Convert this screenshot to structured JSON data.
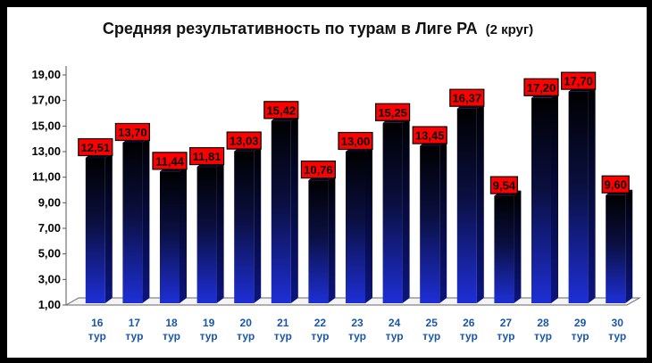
{
  "chart_data": {
    "type": "bar",
    "title": "Средняя результативность по турам в Лиге РА",
    "subtitle": "(2 круг)",
    "categories": [
      "16",
      "17",
      "18",
      "19",
      "20",
      "21",
      "22",
      "23",
      "24",
      "25",
      "26",
      "27",
      "28",
      "29",
      "30"
    ],
    "category_suffix": "тур",
    "values": [
      12.51,
      13.7,
      11.44,
      11.81,
      13.03,
      15.42,
      10.76,
      13.0,
      15.25,
      13.45,
      16.37,
      9.54,
      17.2,
      17.7,
      9.6
    ],
    "value_labels": [
      "12,51",
      "13,70",
      "11,44",
      "11,81",
      "13,03",
      "15,42",
      "10,76",
      "13,00",
      "15,25",
      "13,45",
      "16,37",
      "9,54",
      "17,20",
      "17,70",
      "9,60"
    ],
    "ylim": [
      1,
      19
    ],
    "yticks": [
      "1,00",
      "3,00",
      "5,00",
      "7,00",
      "9,00",
      "11,00",
      "13,00",
      "15,00",
      "17,00",
      "19,00"
    ],
    "grid": false,
    "legend": "none",
    "colors": {
      "bar_top": "#000000",
      "bar_bottom": "#1e2fd6",
      "label_bg": "#ff0000",
      "category_text": "#1a57a8"
    }
  }
}
